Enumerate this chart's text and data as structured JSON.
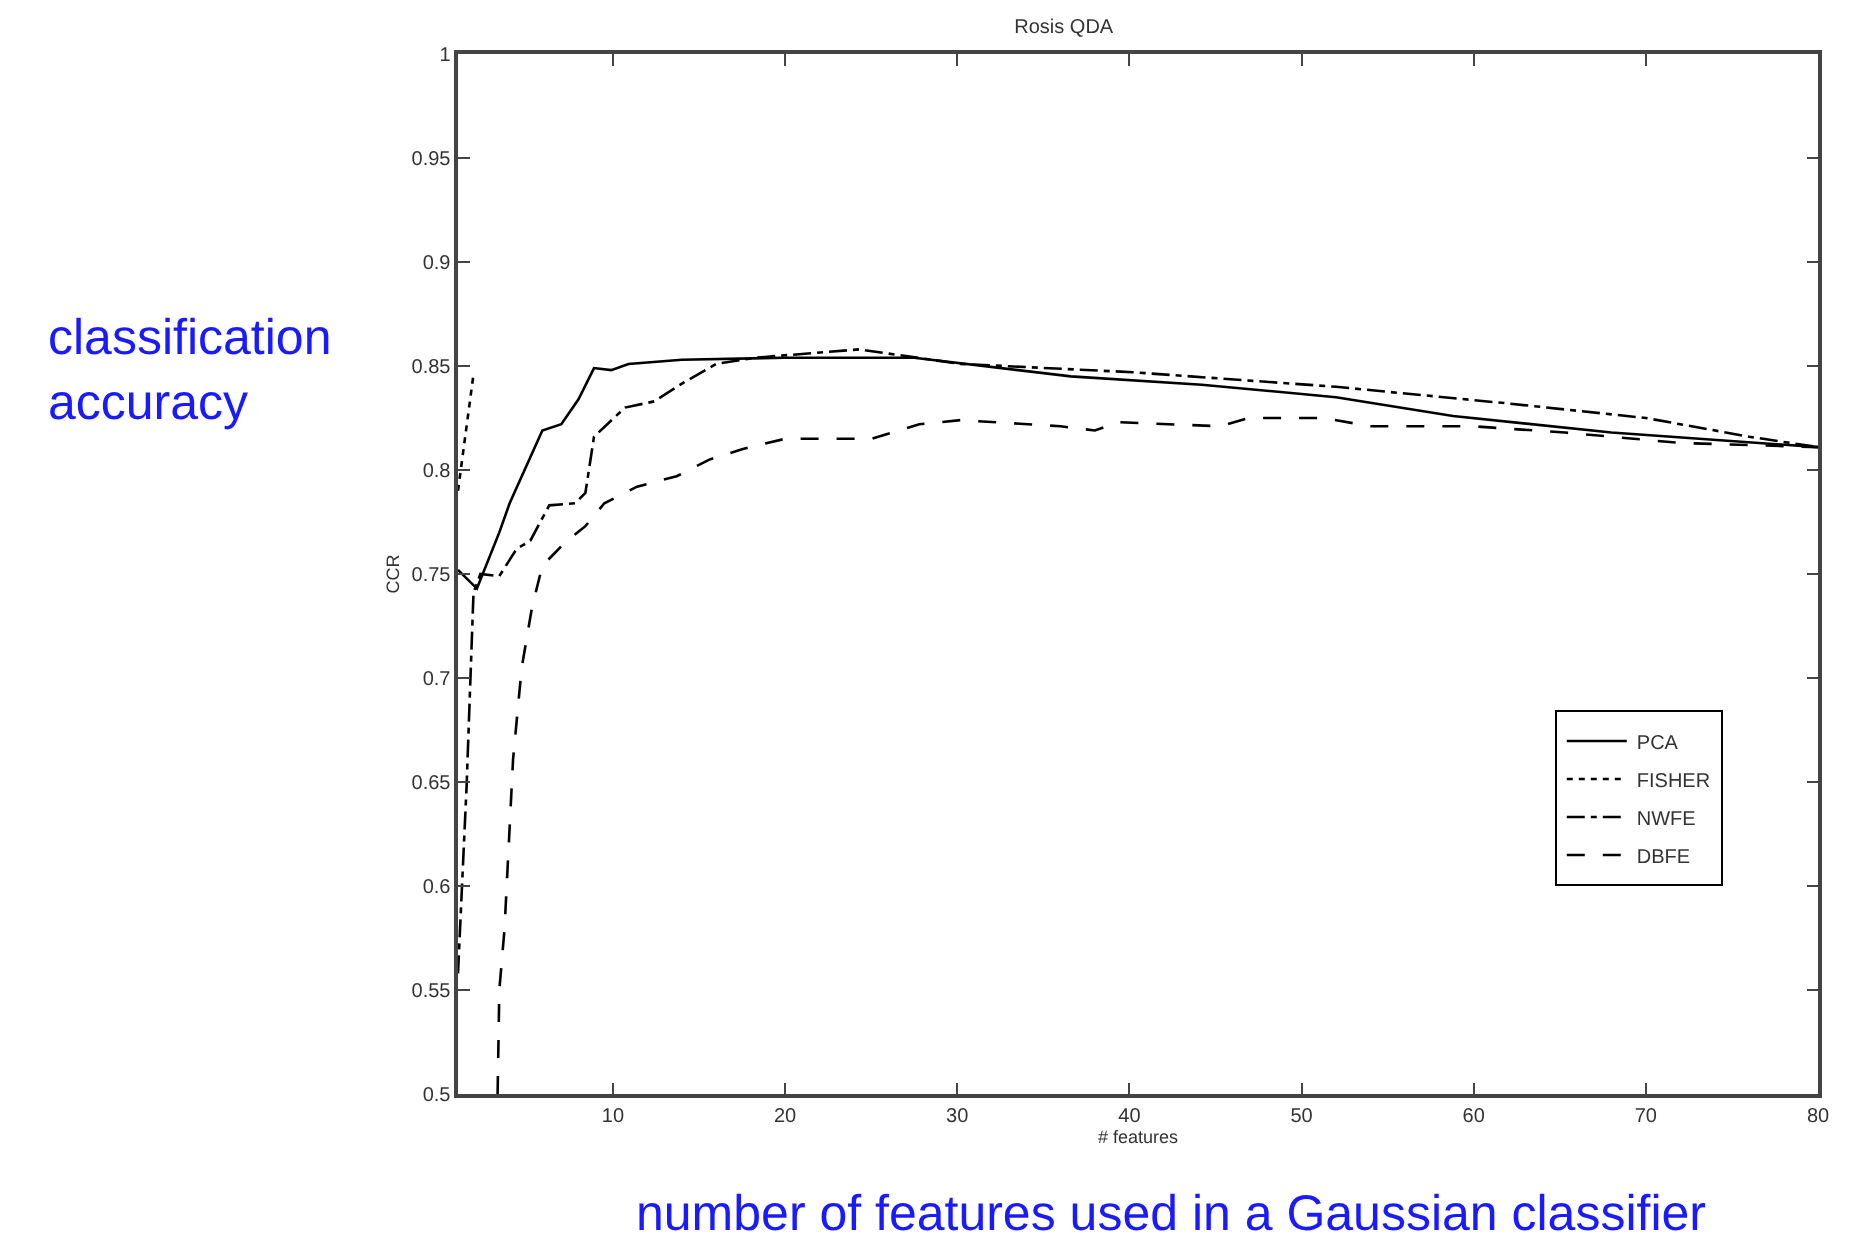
{
  "chart_data": {
    "type": "line",
    "title": "Rosis QDA",
    "xlabel": "# features",
    "ylabel": "CCR",
    "annotations": [
      "classification accuracy",
      "number of features used in a Gaussian classifier"
    ],
    "xlim": [
      1,
      80
    ],
    "xticks": [
      10,
      20,
      30,
      40,
      50,
      60,
      70,
      80
    ],
    "ylim": [
      0.5,
      1
    ],
    "yticks": [
      0.5,
      0.55,
      0.6,
      0.65,
      0.7,
      0.75,
      0.8,
      0.85,
      0.9,
      0.95,
      1
    ],
    "grid": false,
    "legend": "bottom right",
    "marker": "none",
    "series": [
      {
        "name": "PCA",
        "color": "#000000",
        "line_style": "solid",
        "x": [
          1,
          2.1,
          3.4,
          4,
          5.9,
          7,
          8,
          8.9,
          9.9,
          10.9,
          14,
          20,
          27.5,
          36.6,
          44.2,
          52,
          58.8,
          68,
          80
        ],
        "values": [
          0.752,
          0.743,
          0.77,
          0.784,
          0.819,
          0.822,
          0.834,
          0.849,
          0.848,
          0.851,
          0.853,
          0.854,
          0.854,
          0.845,
          0.841,
          0.835,
          0.826,
          0.818,
          0.811
        ]
      },
      {
        "name": "FISHER",
        "color": "#000000",
        "line_style": "dotted",
        "x": [
          1,
          1.9
        ],
        "values": [
          0.79,
          0.846
        ]
      },
      {
        "name": "NWFE",
        "color": "#000000",
        "line_style": "dashdot",
        "x": [
          1,
          1.5,
          1.9,
          2.3,
          3.4,
          4.4,
          5.2,
          6.3,
          7.8,
          8.4,
          8.9,
          10.7,
          12.4,
          14.1,
          16,
          18.3,
          24.3,
          30.2,
          40.2,
          52,
          62,
          70,
          76,
          80
        ],
        "values": [
          0.558,
          0.648,
          0.741,
          0.75,
          0.749,
          0.762,
          0.766,
          0.783,
          0.784,
          0.789,
          0.816,
          0.83,
          0.833,
          0.842,
          0.851,
          0.854,
          0.858,
          0.851,
          0.847,
          0.84,
          0.832,
          0.825,
          0.816,
          0.811
        ]
      },
      {
        "name": "DBFE",
        "color": "#000000",
        "line_style": "dashed",
        "x": [
          3.3,
          3.4,
          3.7,
          4.2,
          4.7,
          5.3,
          5.9,
          7.2,
          8.4,
          9.5,
          11.4,
          13.7,
          15.6,
          17.5,
          20,
          25,
          27.8,
          30.2,
          36,
          38,
          39.4,
          45.3,
          46.9,
          51.3,
          54,
          60,
          65.3,
          72,
          80
        ],
        "values": [
          0.5,
          0.55,
          0.579,
          0.661,
          0.705,
          0.734,
          0.754,
          0.765,
          0.773,
          0.784,
          0.792,
          0.797,
          0.805,
          0.81,
          0.815,
          0.815,
          0.822,
          0.824,
          0.821,
          0.819,
          0.823,
          0.821,
          0.825,
          0.825,
          0.821,
          0.821,
          0.818,
          0.813,
          0.811
        ]
      }
    ]
  }
}
